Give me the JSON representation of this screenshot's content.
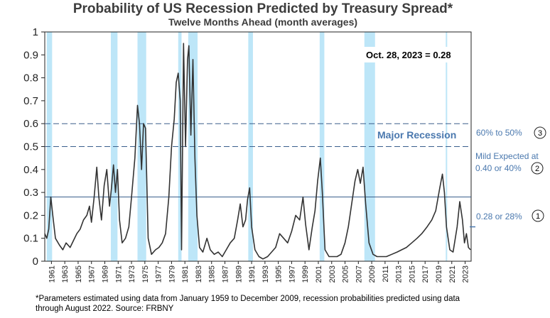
{
  "chart_data": {
    "type": "line",
    "title": "Probability of US Recession Predicted by Treasury Spread*",
    "subtitle": "Twelve Months Ahead (month averages)",
    "xlabel": "",
    "ylabel": "",
    "xlim": [
      1960,
      2023.9
    ],
    "ylim": [
      0,
      1
    ],
    "yticks": [
      "0",
      "0.1",
      "0.2",
      "0.3",
      "0.4",
      "0.5",
      "0.6",
      "0.7",
      "0.8",
      "0.9",
      "1"
    ],
    "xticks": [
      "1961",
      "1963",
      "1965",
      "1967",
      "1969",
      "1971",
      "1973",
      "1975",
      "1977",
      "1979",
      "1981",
      "1983",
      "1985",
      "1987",
      "1989",
      "1991",
      "1993",
      "1995",
      "1997",
      "1999",
      "2001",
      "2003",
      "2005",
      "2007",
      "2009",
      "2011",
      "2013",
      "2015",
      "2017",
      "2019",
      "2021",
      "2023"
    ],
    "recessions": [
      [
        1960.3,
        1961.1
      ],
      [
        1969.9,
        1970.9
      ],
      [
        1973.9,
        1975.2
      ],
      [
        1980.0,
        1980.5
      ],
      [
        1981.5,
        1982.9
      ],
      [
        1990.5,
        1991.2
      ],
      [
        2001.2,
        2001.9
      ],
      [
        2007.9,
        2009.5
      ],
      [
        2020.1,
        2020.3
      ]
    ],
    "series": [
      {
        "values": [
          [
            1960.0,
            0.12
          ],
          [
            1960.3,
            0.1
          ],
          [
            1960.6,
            0.14
          ],
          [
            1960.9,
            0.28
          ],
          [
            1961.2,
            0.2
          ],
          [
            1961.6,
            0.1
          ],
          [
            1962.2,
            0.07
          ],
          [
            1962.7,
            0.05
          ],
          [
            1963.2,
            0.08
          ],
          [
            1963.8,
            0.06
          ],
          [
            1964.3,
            0.09
          ],
          [
            1964.8,
            0.12
          ],
          [
            1965.3,
            0.14
          ],
          [
            1965.8,
            0.18
          ],
          [
            1966.3,
            0.2
          ],
          [
            1966.7,
            0.24
          ],
          [
            1967.0,
            0.17
          ],
          [
            1967.4,
            0.28
          ],
          [
            1967.8,
            0.41
          ],
          [
            1968.1,
            0.28
          ],
          [
            1968.5,
            0.18
          ],
          [
            1968.9,
            0.33
          ],
          [
            1969.3,
            0.4
          ],
          [
            1969.7,
            0.24
          ],
          [
            1970.0,
            0.32
          ],
          [
            1970.3,
            0.42
          ],
          [
            1970.6,
            0.3
          ],
          [
            1970.9,
            0.4
          ],
          [
            1971.2,
            0.18
          ],
          [
            1971.6,
            0.08
          ],
          [
            1972.1,
            0.1
          ],
          [
            1972.6,
            0.15
          ],
          [
            1973.0,
            0.28
          ],
          [
            1973.5,
            0.45
          ],
          [
            1973.9,
            0.68
          ],
          [
            1974.2,
            0.6
          ],
          [
            1974.5,
            0.4
          ],
          [
            1974.8,
            0.6
          ],
          [
            1975.1,
            0.58
          ],
          [
            1975.5,
            0.1
          ],
          [
            1976.0,
            0.03
          ],
          [
            1976.6,
            0.05
          ],
          [
            1977.1,
            0.06
          ],
          [
            1977.6,
            0.08
          ],
          [
            1978.1,
            0.12
          ],
          [
            1978.6,
            0.28
          ],
          [
            1979.0,
            0.5
          ],
          [
            1979.4,
            0.62
          ],
          [
            1979.7,
            0.78
          ],
          [
            1980.0,
            0.82
          ],
          [
            1980.3,
            0.7
          ],
          [
            1980.5,
            0.05
          ],
          [
            1980.8,
            0.95
          ],
          [
            1981.1,
            0.5
          ],
          [
            1981.4,
            0.88
          ],
          [
            1981.6,
            0.94
          ],
          [
            1981.9,
            0.55
          ],
          [
            1982.2,
            0.88
          ],
          [
            1982.5,
            0.45
          ],
          [
            1982.8,
            0.2
          ],
          [
            1983.2,
            0.06
          ],
          [
            1983.7,
            0.04
          ],
          [
            1984.3,
            0.1
          ],
          [
            1984.8,
            0.05
          ],
          [
            1985.4,
            0.03
          ],
          [
            1986.0,
            0.04
          ],
          [
            1986.6,
            0.02
          ],
          [
            1987.2,
            0.05
          ],
          [
            1987.8,
            0.08
          ],
          [
            1988.4,
            0.1
          ],
          [
            1988.9,
            0.18
          ],
          [
            1989.3,
            0.25
          ],
          [
            1989.7,
            0.15
          ],
          [
            1990.1,
            0.18
          ],
          [
            1990.4,
            0.27
          ],
          [
            1990.7,
            0.32
          ],
          [
            1991.0,
            0.15
          ],
          [
            1991.5,
            0.05
          ],
          [
            1992.1,
            0.02
          ],
          [
            1992.7,
            0.01
          ],
          [
            1993.4,
            0.02
          ],
          [
            1994.0,
            0.04
          ],
          [
            1994.6,
            0.06
          ],
          [
            1995.2,
            0.12
          ],
          [
            1995.8,
            0.1
          ],
          [
            1996.4,
            0.08
          ],
          [
            1997.0,
            0.13
          ],
          [
            1997.6,
            0.2
          ],
          [
            1998.2,
            0.18
          ],
          [
            1998.7,
            0.28
          ],
          [
            1999.1,
            0.16
          ],
          [
            1999.6,
            0.05
          ],
          [
            2000.1,
            0.15
          ],
          [
            2000.5,
            0.22
          ],
          [
            2000.9,
            0.35
          ],
          [
            2001.3,
            0.45
          ],
          [
            2001.6,
            0.3
          ],
          [
            2002.0,
            0.05
          ],
          [
            2002.6,
            0.02
          ],
          [
            2003.2,
            0.02
          ],
          [
            2003.8,
            0.02
          ],
          [
            2004.4,
            0.03
          ],
          [
            2005.0,
            0.08
          ],
          [
            2005.5,
            0.15
          ],
          [
            2006.0,
            0.25
          ],
          [
            2006.5,
            0.35
          ],
          [
            2006.9,
            0.4
          ],
          [
            2007.3,
            0.34
          ],
          [
            2007.7,
            0.41
          ],
          [
            2008.1,
            0.25
          ],
          [
            2008.6,
            0.08
          ],
          [
            2009.2,
            0.03
          ],
          [
            2009.8,
            0.02
          ],
          [
            2010.5,
            0.02
          ],
          [
            2011.2,
            0.02
          ],
          [
            2012.0,
            0.03
          ],
          [
            2012.8,
            0.04
          ],
          [
            2013.5,
            0.05
          ],
          [
            2014.2,
            0.06
          ],
          [
            2015.0,
            0.08
          ],
          [
            2015.8,
            0.1
          ],
          [
            2016.5,
            0.12
          ],
          [
            2017.3,
            0.15
          ],
          [
            2018.0,
            0.18
          ],
          [
            2018.6,
            0.22
          ],
          [
            2019.2,
            0.32
          ],
          [
            2019.6,
            0.38
          ],
          [
            2019.9,
            0.3
          ],
          [
            2020.2,
            0.15
          ],
          [
            2020.7,
            0.05
          ],
          [
            2021.2,
            0.04
          ],
          [
            2021.8,
            0.15
          ],
          [
            2022.2,
            0.26
          ],
          [
            2022.6,
            0.18
          ],
          [
            2022.9,
            0.08
          ],
          [
            2023.2,
            0.12
          ],
          [
            2023.5,
            0.06
          ],
          [
            2023.8,
            0.05
          ]
        ]
      }
    ],
    "reference_lines": [
      {
        "value": 0.6,
        "style": "dashed",
        "label": "60% to 50%",
        "marker": "3"
      },
      {
        "value": 0.5,
        "style": "dashed"
      },
      {
        "value": 0.28,
        "style": "solid",
        "label": "0.28 or 28%",
        "marker": "1"
      }
    ],
    "mild_label_1": "Mild Expected at",
    "mild_label_2": "0.40 or 40%",
    "mild_marker": "2",
    "major_label": "Major Recession",
    "callout": "Oct. 28, 2023 = 0.28",
    "colors": {
      "line": "#333333",
      "recession": "#bde6f8",
      "accent": "#4a78ae",
      "ref_line": "#3a5f8c"
    }
  },
  "footnote_line1": "*Parameters estimated using data from January 1959 to December 2009, recession probabilities predicted using data",
  "footnote_line2": "through August 2022. Source: FRBNY"
}
